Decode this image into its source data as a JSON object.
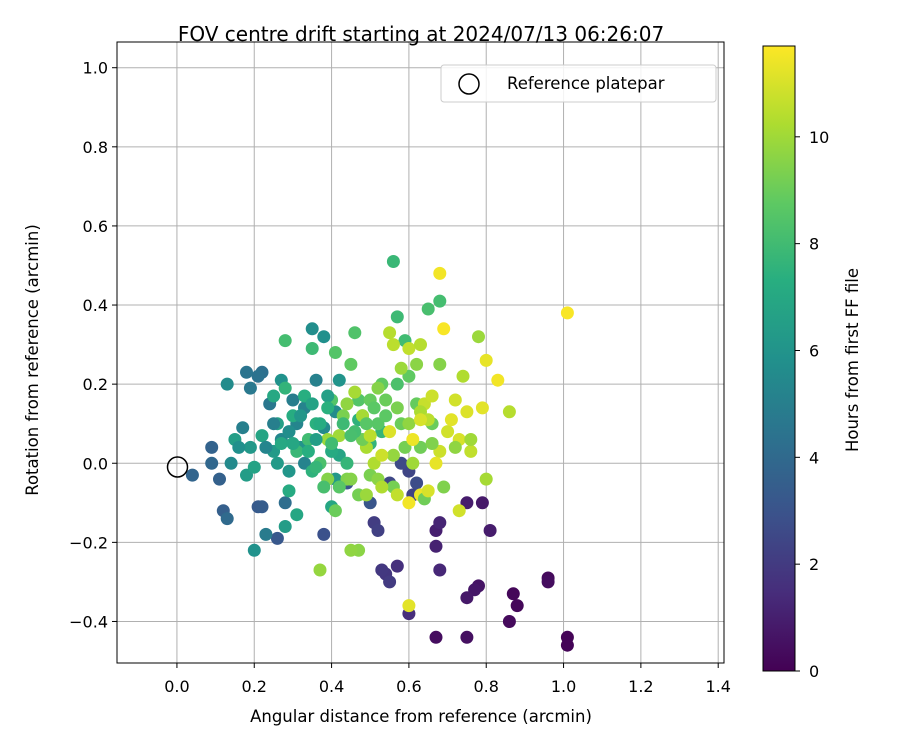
{
  "chart_data": {
    "type": "scatter",
    "title": "FOV centre drift starting at 2024/07/13 06:26:07",
    "xlabel": "Angular distance from reference (arcmin)",
    "ylabel": "Rotation from reference (arcmin)",
    "xlim": [
      -0.155,
      1.415
    ],
    "ylim": [
      -0.505,
      1.065
    ],
    "xticks": [
      "0.0",
      "0.2",
      "0.4",
      "0.6",
      "0.8",
      "1.0",
      "1.2",
      "1.4"
    ],
    "xtick_values": [
      0,
      0.2,
      0.4,
      0.6,
      0.8,
      1.0,
      1.2,
      1.4
    ],
    "yticks": [
      "−0.4",
      "−0.2",
      "0.0",
      "0.2",
      "0.4",
      "0.6",
      "0.8",
      "1.0"
    ],
    "ytick_values": [
      -0.4,
      -0.2,
      0,
      0.2,
      0.4,
      0.6,
      0.8,
      1.0
    ],
    "grid": true,
    "legend": {
      "position": "top-right",
      "entries": [
        {
          "label": "Reference platepar",
          "marker": "open-circle"
        }
      ]
    },
    "reference_point": {
      "x": 0,
      "y": 0
    },
    "colorbar": {
      "label": "Hours from first FF file",
      "colormap": "viridis",
      "min": 0,
      "max": 11.7,
      "ticks": [
        "0",
        "2",
        "4",
        "6",
        "8",
        "10"
      ],
      "tick_values": [
        0,
        2,
        4,
        6,
        8,
        10
      ]
    },
    "points": [
      [
        1.01,
        -0.46,
        0.1
      ],
      [
        1.01,
        -0.44,
        0.1
      ],
      [
        0.87,
        -0.33,
        0.2
      ],
      [
        0.88,
        -0.36,
        0.2
      ],
      [
        0.86,
        -0.4,
        0.3
      ],
      [
        0.96,
        -0.29,
        0.3
      ],
      [
        0.96,
        -0.3,
        0.4
      ],
      [
        0.67,
        -0.44,
        0.4
      ],
      [
        0.75,
        -0.44,
        0.5
      ],
      [
        0.78,
        -0.31,
        0.6
      ],
      [
        0.77,
        -0.32,
        0.7
      ],
      [
        0.75,
        -0.34,
        0.8
      ],
      [
        0.79,
        -0.1,
        0.8
      ],
      [
        0.75,
        -0.1,
        0.9
      ],
      [
        0.81,
        -0.17,
        0.9
      ],
      [
        0.67,
        -0.17,
        1.0
      ],
      [
        0.67,
        -0.21,
        1.1
      ],
      [
        0.68,
        -0.15,
        1.2
      ],
      [
        0.68,
        -0.27,
        1.3
      ],
      [
        0.6,
        -0.38,
        1.5
      ],
      [
        0.57,
        -0.26,
        1.6
      ],
      [
        0.54,
        -0.28,
        1.8
      ],
      [
        0.53,
        -0.27,
        1.9
      ],
      [
        0.55,
        -0.3,
        2.0
      ],
      [
        0.51,
        -0.15,
        2.1
      ],
      [
        0.52,
        -0.17,
        2.2
      ],
      [
        0.61,
        -0.08,
        2.3
      ],
      [
        0.6,
        -0.02,
        2.4
      ],
      [
        0.55,
        -0.05,
        2.5
      ],
      [
        0.58,
        0.0,
        2.6
      ],
      [
        0.62,
        -0.05,
        2.7
      ],
      [
        0.38,
        -0.18,
        2.9
      ],
      [
        0.44,
        -0.05,
        3.0
      ],
      [
        0.5,
        -0.1,
        3.1
      ],
      [
        0.26,
        -0.19,
        3.2
      ],
      [
        0.21,
        -0.11,
        3.3
      ],
      [
        0.22,
        -0.11,
        3.4
      ],
      [
        0.12,
        -0.12,
        3.5
      ],
      [
        0.11,
        -0.04,
        3.6
      ],
      [
        0.09,
        0.04,
        3.7
      ],
      [
        0.04,
        -0.03,
        3.8
      ],
      [
        0.09,
        0.0,
        3.9
      ],
      [
        0.13,
        -0.14,
        4.0
      ],
      [
        0.28,
        -0.1,
        4.2
      ],
      [
        0.22,
        0.23,
        4.3
      ],
      [
        0.21,
        0.22,
        4.4
      ],
      [
        0.18,
        0.23,
        4.5
      ],
      [
        0.24,
        0.15,
        4.6
      ],
      [
        0.19,
        0.19,
        4.7
      ],
      [
        0.23,
        -0.18,
        4.8
      ],
      [
        0.3,
        0.16,
        4.9
      ],
      [
        0.17,
        0.09,
        5.0
      ],
      [
        0.36,
        0.21,
        5.1
      ],
      [
        0.33,
        0.14,
        5.2
      ],
      [
        0.31,
        0.1,
        5.3
      ],
      [
        0.27,
        0.06,
        5.4
      ],
      [
        0.38,
        0.09,
        5.5
      ],
      [
        0.41,
        0.13,
        5.6
      ],
      [
        0.35,
        0.34,
        5.7
      ],
      [
        0.38,
        0.32,
        5.8
      ],
      [
        0.27,
        0.21,
        5.9
      ],
      [
        0.32,
        0.04,
        6.0
      ],
      [
        0.29,
        -0.02,
        6.1
      ],
      [
        0.41,
        -0.04,
        6.2
      ],
      [
        0.25,
        0.03,
        6.3
      ],
      [
        0.18,
        -0.03,
        6.4
      ],
      [
        0.15,
        0.06,
        6.5
      ],
      [
        0.26,
        0.1,
        6.6
      ],
      [
        0.2,
        -0.01,
        6.7
      ],
      [
        0.42,
        0.02,
        6.8
      ],
      [
        0.4,
        -0.11,
        6.9
      ],
      [
        0.27,
        0.05,
        7.0
      ],
      [
        0.29,
        -0.07,
        7.1
      ],
      [
        0.3,
        0.12,
        7.2
      ],
      [
        0.33,
        0.17,
        7.3
      ],
      [
        0.36,
        0.1,
        7.4
      ],
      [
        0.47,
        0.11,
        7.5
      ],
      [
        0.5,
        0.05,
        7.6
      ],
      [
        0.53,
        0.08,
        7.7
      ],
      [
        0.56,
        0.51,
        7.8
      ],
      [
        0.57,
        0.37,
        7.9
      ],
      [
        0.59,
        0.31,
        8.0
      ],
      [
        0.68,
        0.41,
        8.1
      ],
      [
        0.65,
        0.39,
        8.2
      ],
      [
        0.57,
        0.2,
        8.3
      ],
      [
        0.46,
        0.33,
        8.4
      ],
      [
        0.47,
        0.16,
        8.5
      ],
      [
        0.52,
        0.1,
        8.6
      ],
      [
        0.54,
        0.12,
        8.7
      ],
      [
        0.6,
        0.22,
        8.8
      ],
      [
        0.62,
        0.15,
        8.9
      ],
      [
        0.66,
        0.1,
        9.0
      ],
      [
        0.63,
        0.04,
        9.1
      ],
      [
        0.56,
        -0.06,
        9.2
      ],
      [
        0.5,
        -0.03,
        9.3
      ],
      [
        0.44,
        -0.04,
        9.4
      ],
      [
        0.39,
        -0.04,
        9.5
      ],
      [
        0.47,
        -0.22,
        9.6
      ],
      [
        0.45,
        -0.22,
        9.7
      ],
      [
        0.37,
        -0.27,
        9.8
      ],
      [
        0.39,
        0.06,
        9.9
      ],
      [
        0.42,
        0.07,
        10.0
      ],
      [
        0.46,
        0.18,
        10.1
      ],
      [
        0.49,
        0.04,
        10.2
      ],
      [
        0.51,
        0.0,
        10.3
      ],
      [
        0.55,
        0.33,
        10.4
      ],
      [
        0.56,
        0.3,
        10.5
      ],
      [
        0.6,
        0.29,
        10.6
      ],
      [
        0.64,
        0.15,
        10.7
      ],
      [
        0.68,
        0.03,
        10.8
      ],
      [
        0.7,
        0.08,
        10.9
      ],
      [
        0.73,
        0.06,
        11.0
      ],
      [
        0.75,
        0.13,
        11.1
      ],
      [
        0.6,
        -0.36,
        11.2
      ],
      [
        0.67,
        0.0,
        11.3
      ],
      [
        0.63,
        -0.08,
        11.4
      ],
      [
        0.68,
        0.48,
        11.5
      ],
      [
        0.69,
        0.34,
        11.6
      ],
      [
        1.01,
        0.38,
        11.6
      ],
      [
        0.83,
        0.21,
        11.5
      ],
      [
        0.8,
        0.26,
        11.3
      ],
      [
        0.79,
        0.14,
        11.2
      ],
      [
        0.73,
        -0.12,
        10.9
      ],
      [
        0.76,
        0.03,
        10.6
      ],
      [
        0.86,
        0.13,
        10.4
      ],
      [
        0.78,
        0.32,
        9.9
      ],
      [
        0.8,
        -0.04,
        10.1
      ],
      [
        0.68,
        0.25,
        9.5
      ],
      [
        0.66,
        0.05,
        9.4
      ],
      [
        0.59,
        0.04,
        9.2
      ],
      [
        0.62,
        0.25,
        9.6
      ],
      [
        0.58,
        0.1,
        9.0
      ],
      [
        0.53,
        0.2,
        8.8
      ],
      [
        0.5,
        0.16,
        8.9
      ],
      [
        0.48,
        0.06,
        9.1
      ],
      [
        0.43,
        0.12,
        9.3
      ],
      [
        0.4,
        0.16,
        8.5
      ],
      [
        0.37,
        0.0,
        8.3
      ],
      [
        0.34,
        0.06,
        8.0
      ],
      [
        0.31,
        0.03,
        7.8
      ],
      [
        0.28,
        0.19,
        7.6
      ],
      [
        0.25,
        0.17,
        7.0
      ],
      [
        0.22,
        0.07,
        6.8
      ],
      [
        0.19,
        0.04,
        6.2
      ],
      [
        0.16,
        0.04,
        5.8
      ],
      [
        0.14,
        0.0,
        5.5
      ],
      [
        0.33,
        0.0,
        5.2
      ],
      [
        0.36,
        0.06,
        6.5
      ],
      [
        0.4,
        0.03,
        7.1
      ],
      [
        0.44,
        0.0,
        7.7
      ],
      [
        0.46,
        0.08,
        8.1
      ],
      [
        0.48,
        0.12,
        8.4
      ],
      [
        0.51,
        0.14,
        8.7
      ],
      [
        0.54,
        0.16,
        9.0
      ],
      [
        0.57,
        0.14,
        9.3
      ],
      [
        0.6,
        0.1,
        9.7
      ],
      [
        0.63,
        0.13,
        10.2
      ],
      [
        0.65,
        0.11,
        10.5
      ],
      [
        0.61,
        0.0,
        10.0
      ],
      [
        0.56,
        0.02,
        9.8
      ],
      [
        0.52,
        -0.04,
        9.6
      ],
      [
        0.47,
        -0.08,
        9.2
      ],
      [
        0.42,
        -0.06,
        8.6
      ],
      [
        0.38,
        -0.06,
        8.2
      ],
      [
        0.35,
        -0.02,
        7.5
      ],
      [
        0.31,
        -0.13,
        6.9
      ],
      [
        0.28,
        -0.16,
        6.4
      ],
      [
        0.2,
        -0.22,
        5.9
      ],
      [
        0.13,
        0.2,
        5.6
      ],
      [
        0.42,
        0.21,
        6.0
      ],
      [
        0.39,
        0.17,
        6.6
      ],
      [
        0.35,
        0.29,
        7.9
      ],
      [
        0.28,
        0.31,
        8.1
      ],
      [
        0.41,
        0.28,
        8.5
      ],
      [
        0.45,
        0.25,
        8.8
      ],
      [
        0.52,
        0.19,
        9.5
      ],
      [
        0.58,
        0.24,
        9.9
      ],
      [
        0.63,
        0.3,
        10.4
      ],
      [
        0.66,
        0.17,
        10.8
      ],
      [
        0.71,
        0.11,
        11.2
      ],
      [
        0.72,
        0.16,
        10.9
      ],
      [
        0.74,
        0.22,
        10.3
      ],
      [
        0.76,
        0.06,
        10.0
      ],
      [
        0.72,
        0.04,
        9.7
      ],
      [
        0.69,
        -0.06,
        9.4
      ],
      [
        0.64,
        -0.09,
        9.1
      ],
      [
        0.6,
        -0.1,
        11.5
      ],
      [
        0.65,
        -0.07,
        11.0
      ],
      [
        0.57,
        -0.08,
        10.6
      ],
      [
        0.53,
        -0.06,
        10.3
      ],
      [
        0.49,
        -0.08,
        9.9
      ],
      [
        0.45,
        -0.04,
        9.5
      ],
      [
        0.41,
        -0.12,
        9.0
      ],
      [
        0.44,
        0.15,
        9.7
      ],
      [
        0.48,
        0.12,
        10.1
      ],
      [
        0.5,
        0.07,
        10.5
      ],
      [
        0.53,
        0.02,
        10.8
      ],
      [
        0.55,
        0.08,
        11.1
      ],
      [
        0.61,
        0.06,
        11.4
      ],
      [
        0.63,
        0.11,
        11.0
      ],
      [
        0.25,
        0.1,
        5.0
      ],
      [
        0.23,
        0.04,
        5.3
      ],
      [
        0.29,
        0.08,
        5.7
      ],
      [
        0.32,
        0.12,
        6.1
      ],
      [
        0.35,
        0.15,
        6.7
      ],
      [
        0.37,
        0.1,
        7.2
      ],
      [
        0.39,
        0.14,
        7.4
      ],
      [
        0.43,
        0.1,
        7.9
      ],
      [
        0.45,
        0.07,
        8.2
      ],
      [
        0.49,
        0.1,
        8.6
      ],
      [
        0.26,
        0.0,
        6.3
      ],
      [
        0.3,
        0.05,
        6.9
      ],
      [
        0.34,
        0.03,
        7.3
      ],
      [
        0.36,
        -0.01,
        7.7
      ],
      [
        0.4,
        0.05,
        8.0
      ]
    ]
  }
}
